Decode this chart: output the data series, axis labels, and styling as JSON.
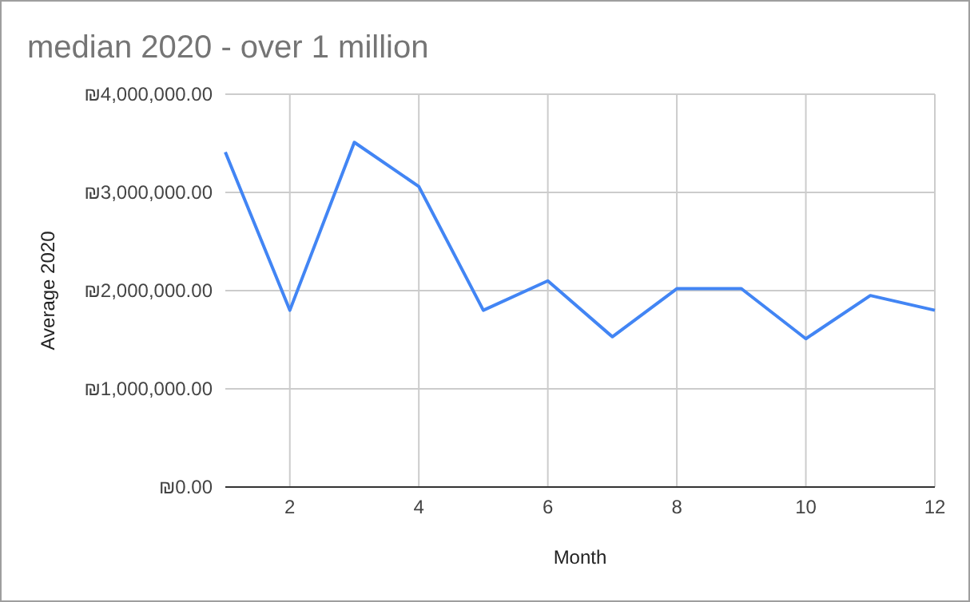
{
  "chart_data": {
    "type": "line",
    "title": "median 2020 - over 1 million",
    "xlabel": "Month",
    "ylabel": "Average 2020",
    "x": [
      1,
      2,
      3,
      4,
      5,
      6,
      7,
      8,
      9,
      10,
      11,
      12
    ],
    "series": [
      {
        "color": "#4285f4",
        "values": [
          3410000,
          1800000,
          3510000,
          3060000,
          1800000,
          2100000,
          1530000,
          2020000,
          2020000,
          1510000,
          1950000,
          1800000
        ]
      }
    ],
    "xlim": [
      1,
      12
    ],
    "xticks": [
      2,
      4,
      6,
      8,
      10,
      12
    ],
    "ylim": [
      0,
      4000000
    ],
    "yticks": [
      {
        "value": 0,
        "label": "₪0.00"
      },
      {
        "value": 1000000,
        "label": "₪1,000,000.00"
      },
      {
        "value": 2000000,
        "label": "₪2,000,000.00"
      },
      {
        "value": 3000000,
        "label": "₪3,000,000.00"
      },
      {
        "value": 4000000,
        "label": "₪4,000,000.00"
      }
    ],
    "grid": true,
    "line_style": "solid"
  }
}
